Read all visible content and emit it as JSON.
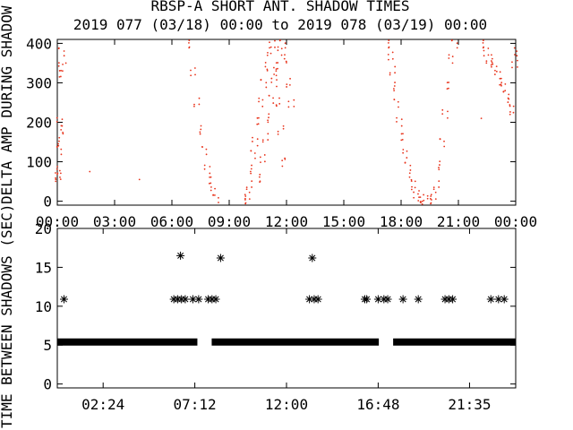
{
  "title": "RBSP-A SHORT ANT. SHADOW TIMES",
  "subtitle": "2019 077 (03/18) 00:00 to 2019 078 (03/19) 00:00",
  "colors": {
    "top_points": "#e8341c",
    "bottom_points": "#000000",
    "axes": "#000000"
  },
  "chart_data": [
    {
      "type": "scatter",
      "ylabel": "DELTA AMP DURING SHADOW",
      "xlim": [
        "00:00",
        "24:00"
      ],
      "ylim": [
        -10,
        410
      ],
      "x_ticks": [
        "00:00",
        "03:00",
        "06:00",
        "09:00",
        "12:00",
        "15:00",
        "18:00",
        "21:00",
        "00:00"
      ],
      "y_ticks": [
        0,
        100,
        200,
        300,
        400
      ],
      "marker": "dot",
      "groups": [
        {
          "x_hours": [
            0.0,
            0.02,
            0.05,
            0.08,
            0.1,
            0.12,
            0.15,
            0.18,
            0.22,
            0.25
          ],
          "y": [
            80,
            70,
            60,
            150,
            130,
            200,
            320,
            340,
            380,
            180
          ]
        },
        {
          "x_hours": [
            0.45,
            1.7,
            4.3
          ],
          "y": [
            350,
            75,
            55
          ]
        },
        {
          "x_hours": [
            6.9,
            7.1,
            7.3,
            7.5,
            7.7,
            7.85,
            8.0,
            8.15,
            8.3
          ],
          "y": [
            400,
            330,
            250,
            180,
            130,
            80,
            50,
            25,
            8
          ]
        },
        {
          "x_hours": [
            9.85,
            9.95,
            10.05,
            10.15,
            10.25,
            10.35,
            10.5,
            10.65,
            10.8,
            10.95,
            11.1,
            11.25,
            11.4,
            11.55,
            11.7,
            11.85
          ],
          "y": [
            5,
            15,
            40,
            80,
            120,
            150,
            200,
            250,
            300,
            340,
            380,
            400,
            330,
            250,
            180,
            100
          ]
        },
        {
          "x_hours": [
            10.6,
            10.75,
            10.9,
            11.05,
            11.2,
            11.35,
            11.5,
            11.65,
            11.8,
            11.95,
            12.1,
            12.25
          ],
          "y": [
            60,
            110,
            160,
            210,
            260,
            300,
            340,
            380,
            400,
            360,
            300,
            250
          ]
        },
        {
          "x_hours": [
            17.35,
            17.45,
            17.55,
            17.65,
            17.75,
            17.9,
            18.05,
            18.2,
            18.35,
            18.5,
            18.65,
            18.8,
            18.95,
            19.1,
            19.25
          ],
          "y": [
            400,
            370,
            330,
            290,
            250,
            200,
            160,
            120,
            90,
            60,
            40,
            20,
            10,
            5,
            3
          ]
        },
        {
          "x_hours": [
            19.55,
            19.7,
            19.85,
            20.0,
            20.15,
            20.3,
            20.45,
            20.6,
            20.8
          ],
          "y": [
            5,
            15,
            40,
            90,
            150,
            220,
            290,
            360,
            400
          ]
        },
        {
          "x_hours": [
            22.3,
            22.45,
            22.6,
            22.75,
            22.9,
            23.05,
            23.2,
            23.35,
            23.5,
            23.65,
            23.8,
            23.95,
            24.0
          ],
          "y": [
            400,
            380,
            360,
            350,
            340,
            320,
            300,
            290,
            270,
            250,
            230,
            350,
            380
          ]
        },
        {
          "x_hours": [
            22.2
          ],
          "y": [
            210
          ]
        }
      ]
    },
    {
      "type": "scatter",
      "ylabel": "TIME BETWEEN SHADOWS (SEC)",
      "xlim": [
        "00:00",
        "24:00"
      ],
      "ylim": [
        -0.5,
        20
      ],
      "x_ticks": [
        "02:24",
        "07:12",
        "12:00",
        "16:48",
        "21:35"
      ],
      "y_ticks": [
        0,
        5,
        10,
        15,
        20
      ],
      "marker": "asterisk",
      "baseline": {
        "value": 5.4,
        "segments": [
          [
            "00:00",
            "07:20"
          ],
          [
            "08:05",
            "16:50"
          ],
          [
            "17:35",
            "24:00"
          ]
        ]
      },
      "points": [
        {
          "x_hours": 0.35,
          "y": 10.9
        },
        {
          "x_hours": 6.1,
          "y": 10.9
        },
        {
          "x_hours": 6.3,
          "y": 10.9
        },
        {
          "x_hours": 6.5,
          "y": 10.9
        },
        {
          "x_hours": 6.7,
          "y": 10.9
        },
        {
          "x_hours": 6.45,
          "y": 16.5
        },
        {
          "x_hours": 7.1,
          "y": 10.9
        },
        {
          "x_hours": 7.4,
          "y": 10.9
        },
        {
          "x_hours": 7.9,
          "y": 10.9
        },
        {
          "x_hours": 8.1,
          "y": 10.9
        },
        {
          "x_hours": 8.3,
          "y": 10.9
        },
        {
          "x_hours": 8.55,
          "y": 16.2
        },
        {
          "x_hours": 13.2,
          "y": 10.9
        },
        {
          "x_hours": 13.45,
          "y": 10.9
        },
        {
          "x_hours": 13.65,
          "y": 10.9
        },
        {
          "x_hours": 13.35,
          "y": 16.2
        },
        {
          "x_hours": 16.1,
          "y": 10.9
        },
        {
          "x_hours": 16.2,
          "y": 10.9
        },
        {
          "x_hours": 16.8,
          "y": 10.9
        },
        {
          "x_hours": 17.1,
          "y": 10.9
        },
        {
          "x_hours": 17.3,
          "y": 10.9
        },
        {
          "x_hours": 18.1,
          "y": 10.9
        },
        {
          "x_hours": 18.9,
          "y": 10.9
        },
        {
          "x_hours": 20.3,
          "y": 10.9
        },
        {
          "x_hours": 20.5,
          "y": 10.9
        },
        {
          "x_hours": 20.7,
          "y": 10.9
        },
        {
          "x_hours": 22.7,
          "y": 10.9
        },
        {
          "x_hours": 23.1,
          "y": 10.9
        },
        {
          "x_hours": 23.4,
          "y": 10.9
        }
      ]
    }
  ]
}
